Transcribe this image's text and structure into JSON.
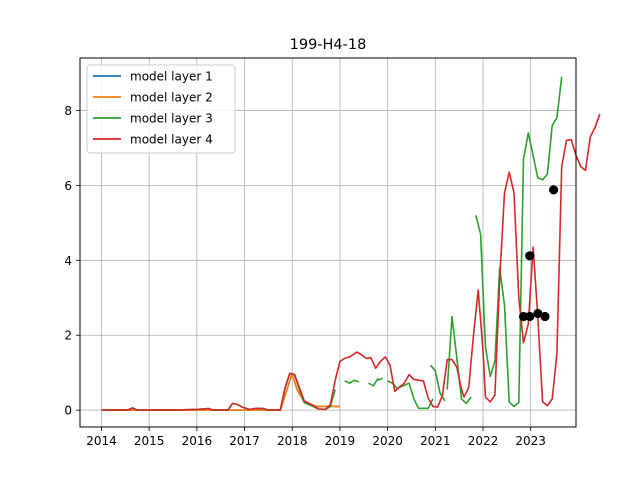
{
  "chart_data": {
    "type": "line",
    "title": "199-H4-18",
    "xlabel": "",
    "ylabel": "",
    "xlim": [
      2013.55,
      2023.95
    ],
    "ylim": [
      -0.45,
      9.4
    ],
    "xticks": [
      2014,
      2015,
      2016,
      2017,
      2018,
      2019,
      2020,
      2021,
      2022,
      2023
    ],
    "xtick_labels": [
      "2014",
      "2015",
      "2016",
      "2017",
      "2018",
      "2019",
      "2020",
      "2021",
      "2022",
      "2023"
    ],
    "yticks": [
      0,
      2,
      4,
      6,
      8
    ],
    "ytick_labels": [
      "0",
      "2",
      "4",
      "6",
      "8"
    ],
    "grid": true,
    "legend_position": "top-left",
    "series": [
      {
        "name": "model layer 1",
        "color": "#1f77b4",
        "segments": [
          [
            [
              2014.0,
              0.0
            ],
            [
              2015.0,
              0.0
            ],
            [
              2016.0,
              0.0
            ],
            [
              2016.8,
              0.0
            ],
            [
              2017.5,
              0.0
            ],
            [
              2017.75,
              0.0
            ],
            [
              2018.0,
              0.98
            ],
            [
              2018.1,
              0.55
            ],
            [
              2018.25,
              0.22
            ],
            [
              2018.5,
              0.1
            ],
            [
              2018.75,
              0.1
            ],
            [
              2019.0,
              0.1
            ]
          ]
        ]
      },
      {
        "name": "model layer 2",
        "color": "#ff7f0e",
        "segments": [
          [
            [
              2014.0,
              0.0
            ],
            [
              2015.0,
              0.0
            ],
            [
              2016.0,
              0.0
            ],
            [
              2016.8,
              0.0
            ],
            [
              2017.5,
              0.0
            ],
            [
              2017.75,
              0.0
            ],
            [
              2018.0,
              0.98
            ],
            [
              2018.1,
              0.55
            ],
            [
              2018.25,
              0.22
            ],
            [
              2018.5,
              0.1
            ],
            [
              2018.75,
              0.1
            ],
            [
              2019.0,
              0.1
            ]
          ]
        ]
      },
      {
        "name": "model layer 3",
        "color": "#2ca02c",
        "segments": [
          [
            [
              2014.0,
              0.0
            ],
            [
              2014.55,
              0.0
            ],
            [
              2014.65,
              0.06
            ],
            [
              2014.75,
              0.0
            ],
            [
              2015.5,
              0.0
            ],
            [
              2016.0,
              0.02
            ],
            [
              2016.25,
              0.04
            ],
            [
              2016.35,
              0.0
            ],
            [
              2016.65,
              0.0
            ],
            [
              2016.75,
              0.18
            ],
            [
              2016.85,
              0.15
            ],
            [
              2016.95,
              0.08
            ],
            [
              2017.1,
              0.02
            ],
            [
              2017.25,
              0.05
            ],
            [
              2017.4,
              0.04
            ],
            [
              2017.5,
              0.0
            ],
            [
              2017.75,
              0.0
            ],
            [
              2017.85,
              0.6
            ],
            [
              2017.95,
              0.98
            ],
            [
              2018.05,
              0.95
            ],
            [
              2018.15,
              0.55
            ],
            [
              2018.25,
              0.2
            ],
            [
              2018.4,
              0.12
            ],
            [
              2018.55,
              0.03
            ],
            [
              2018.7,
              0.02
            ],
            [
              2018.8,
              0.1
            ],
            [
              2018.9,
              0.55
            ]
          ],
          [
            [
              2019.8,
              0.8
            ],
            [
              2019.9,
              0.85
            ]
          ],
          [
            [
              2019.1,
              0.78
            ],
            [
              2019.2,
              0.72
            ],
            [
              2019.3,
              0.8
            ],
            [
              2019.4,
              0.75
            ]
          ],
          [
            [
              2019.6,
              0.72
            ],
            [
              2019.7,
              0.65
            ],
            [
              2019.8,
              0.85
            ]
          ],
          [
            [
              2020.0,
              0.78
            ],
            [
              2020.1,
              0.72
            ],
            [
              2020.2,
              0.58
            ],
            [
              2020.35,
              0.66
            ],
            [
              2020.45,
              0.72
            ],
            [
              2020.55,
              0.3
            ],
            [
              2020.65,
              0.05
            ],
            [
              2020.85,
              0.05
            ],
            [
              2020.95,
              0.3
            ]
          ],
          [
            [
              2020.9,
              1.2
            ],
            [
              2021.0,
              1.05
            ],
            [
              2021.1,
              0.45
            ],
            [
              2021.2,
              0.25
            ]
          ],
          [
            [
              2021.25,
              0.55
            ],
            [
              2021.35,
              2.5
            ],
            [
              2021.45,
              1.4
            ],
            [
              2021.55,
              0.3
            ],
            [
              2021.65,
              0.18
            ],
            [
              2021.75,
              0.35
            ]
          ],
          [
            [
              2021.85,
              5.2
            ],
            [
              2021.95,
              4.7
            ],
            [
              2022.05,
              1.7
            ],
            [
              2022.15,
              0.9
            ],
            [
              2022.25,
              1.3
            ],
            [
              2022.35,
              3.8
            ],
            [
              2022.45,
              2.8
            ],
            [
              2022.55,
              0.22
            ],
            [
              2022.65,
              0.1
            ],
            [
              2022.75,
              0.2
            ],
            [
              2022.85,
              6.7
            ],
            [
              2022.95,
              7.4
            ],
            [
              2023.05,
              6.8
            ],
            [
              2023.15,
              6.2
            ],
            [
              2023.25,
              6.15
            ],
            [
              2023.35,
              6.3
            ],
            [
              2023.45,
              7.6
            ],
            [
              2023.55,
              7.8
            ],
            [
              2023.65,
              8.9
            ]
          ]
        ]
      },
      {
        "name": "model layer 4",
        "color": "#d62728",
        "segments": [
          [
            [
              2014.0,
              0.0
            ],
            [
              2014.55,
              0.0
            ],
            [
              2014.65,
              0.06
            ],
            [
              2014.75,
              0.0
            ],
            [
              2015.5,
              0.0
            ],
            [
              2016.0,
              0.02
            ],
            [
              2016.25,
              0.04
            ],
            [
              2016.35,
              0.0
            ],
            [
              2016.65,
              0.0
            ],
            [
              2016.75,
              0.18
            ],
            [
              2016.85,
              0.15
            ],
            [
              2016.95,
              0.08
            ],
            [
              2017.1,
              0.02
            ],
            [
              2017.25,
              0.05
            ],
            [
              2017.4,
              0.04
            ],
            [
              2017.5,
              0.0
            ],
            [
              2017.75,
              0.0
            ],
            [
              2017.85,
              0.6
            ],
            [
              2017.95,
              0.98
            ],
            [
              2018.05,
              0.95
            ],
            [
              2018.15,
              0.6
            ],
            [
              2018.25,
              0.25
            ],
            [
              2018.4,
              0.15
            ],
            [
              2018.55,
              0.03
            ],
            [
              2018.7,
              0.02
            ],
            [
              2018.8,
              0.15
            ],
            [
              2018.9,
              0.8
            ],
            [
              2019.0,
              1.3
            ],
            [
              2019.1,
              1.38
            ],
            [
              2019.2,
              1.42
            ],
            [
              2019.3,
              1.5
            ],
            [
              2019.35,
              1.55
            ],
            [
              2019.45,
              1.48
            ],
            [
              2019.55,
              1.38
            ],
            [
              2019.65,
              1.4
            ],
            [
              2019.75,
              1.12
            ],
            [
              2019.85,
              1.3
            ],
            [
              2019.95,
              1.42
            ],
            [
              2020.05,
              1.2
            ],
            [
              2020.15,
              0.5
            ],
            [
              2020.25,
              0.62
            ],
            [
              2020.35,
              0.72
            ],
            [
              2020.45,
              0.95
            ],
            [
              2020.55,
              0.82
            ],
            [
              2020.65,
              0.8
            ],
            [
              2020.75,
              0.78
            ],
            [
              2020.85,
              0.32
            ],
            [
              2020.95,
              0.1
            ],
            [
              2021.05,
              0.08
            ],
            [
              2021.15,
              0.4
            ],
            [
              2021.25,
              1.35
            ],
            [
              2021.35,
              1.35
            ],
            [
              2021.45,
              1.15
            ],
            [
              2021.55,
              0.55
            ],
            [
              2021.6,
              0.35
            ],
            [
              2021.7,
              0.6
            ],
            [
              2021.8,
              2.0
            ],
            [
              2021.9,
              3.2
            ],
            [
              2022.0,
              1.6
            ],
            [
              2022.05,
              0.35
            ],
            [
              2022.15,
              0.22
            ],
            [
              2022.25,
              0.4
            ],
            [
              2022.35,
              3.5
            ],
            [
              2022.45,
              5.8
            ],
            [
              2022.55,
              6.35
            ],
            [
              2022.65,
              5.8
            ],
            [
              2022.75,
              3.0
            ],
            [
              2022.85,
              1.8
            ],
            [
              2022.95,
              2.3
            ],
            [
              2023.05,
              4.35
            ],
            [
              2023.15,
              2.5
            ],
            [
              2023.25,
              0.22
            ],
            [
              2023.35,
              0.12
            ],
            [
              2023.45,
              0.3
            ],
            [
              2023.55,
              1.5
            ],
            [
              2023.65,
              6.5
            ],
            [
              2023.75,
              7.2
            ],
            [
              2023.85,
              7.22
            ],
            [
              2023.95,
              6.8
            ],
            [
              2024.05,
              6.5
            ],
            [
              2024.15,
              6.4
            ],
            [
              2024.25,
              7.3
            ],
            [
              2024.35,
              7.55
            ],
            [
              2024.45,
              7.9
            ]
          ]
        ]
      }
    ],
    "observations": {
      "color": "#000000",
      "points": [
        [
          2022.85,
          2.5
        ],
        [
          2022.98,
          2.5
        ],
        [
          2022.98,
          4.12
        ],
        [
          2023.15,
          2.58
        ],
        [
          2023.3,
          2.5
        ],
        [
          2023.48,
          5.88
        ]
      ]
    }
  }
}
